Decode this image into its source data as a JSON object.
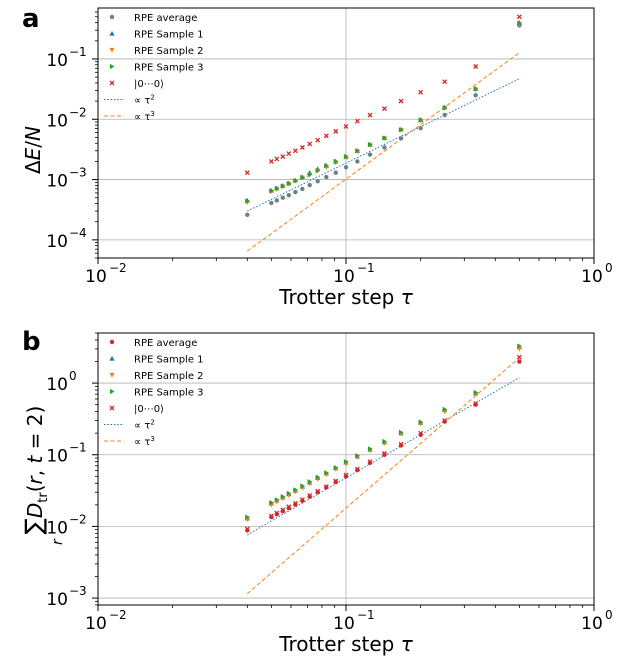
{
  "chart_data": [
    {
      "panel": "a",
      "type": "scatter",
      "xlabel": "Trotter step τ",
      "ylabel": "ΔE/N",
      "xscale": "log",
      "yscale": "log",
      "xlim": [
        0.01,
        1
      ],
      "ylim": [
        5e-05,
        0.7
      ],
      "xticks": [
        {
          "base": "10",
          "exp": "−2"
        },
        {
          "base": "10",
          "exp": "−1"
        },
        {
          "base": "10",
          "exp": "0"
        }
      ],
      "yticks": [
        {
          "value": 0.0001,
          "base": "10",
          "exp": "−4"
        },
        {
          "value": 0.001,
          "base": "10",
          "exp": "−3"
        },
        {
          "value": 0.01,
          "base": "10",
          "exp": "−2"
        },
        {
          "value": 0.1,
          "base": "10",
          "exp": "−1"
        }
      ],
      "grid": true,
      "legend_position": "top-left",
      "legend": [
        {
          "label": "RPE average",
          "marker": "dot",
          "color": "#6b7f8a"
        },
        {
          "label": "RPE Sample 1",
          "marker": "triangle-up",
          "color": "#1f77b4"
        },
        {
          "label": "RPE Sample 2",
          "marker": "triangle-down",
          "color": "#ff7f0e"
        },
        {
          "label": "RPE Sample 3",
          "marker": "triangle-right",
          "color": "#2ca02c"
        },
        {
          "label": "|0⋯0⟩",
          "marker": "x",
          "color": "#d62728"
        },
        {
          "label": "∝ τ",
          "exp": "2",
          "marker": "dotted",
          "color": "#1f77b4"
        },
        {
          "label": "∝ τ",
          "exp": "3",
          "marker": "dashed",
          "color": "#ff7f0e"
        }
      ],
      "x": [
        0.04,
        0.05,
        0.0526,
        0.0556,
        0.0588,
        0.0625,
        0.0667,
        0.0714,
        0.0769,
        0.0833,
        0.0909,
        0.1,
        0.1111,
        0.125,
        0.1429,
        0.1667,
        0.2,
        0.25,
        0.3333,
        0.5
      ],
      "series": [
        {
          "name": "RPE average",
          "values": [
            0.00026,
            0.00041,
            0.00045,
            0.0005,
            0.00055,
            0.00062,
            0.0007,
            0.00081,
            0.00094,
            0.0011,
            0.0013,
            0.0016,
            0.002,
            0.0026,
            0.0034,
            0.0048,
            0.0071,
            0.0118,
            0.025,
            0.36
          ]
        },
        {
          "name": "RPE Sample 1",
          "values": [
            0.00045,
            0.00066,
            0.00072,
            0.00079,
            0.00087,
            0.00097,
            0.0011,
            0.0013,
            0.0015,
            0.0017,
            0.002,
            0.0024,
            0.003,
            0.0038,
            0.0049,
            0.0068,
            0.0098,
            0.0158,
            0.032,
            0.4
          ]
        },
        {
          "name": "RPE Sample 2",
          "values": [
            0.00042,
            0.00063,
            0.00069,
            0.00076,
            0.00084,
            0.00094,
            0.00107,
            0.0012,
            0.0014,
            0.0016,
            0.0019,
            0.0023,
            0.0029,
            0.0037,
            0.0048,
            0.0066,
            0.0095,
            0.0152,
            0.031,
            0.38
          ]
        },
        {
          "name": "RPE Sample 3",
          "values": [
            0.00044,
            0.00065,
            0.00071,
            0.00078,
            0.00086,
            0.00096,
            0.00108,
            0.0012,
            0.0014,
            0.0017,
            0.002,
            0.0024,
            0.003,
            0.0038,
            0.0049,
            0.0067,
            0.0097,
            0.0155,
            0.032,
            0.39
          ]
        },
        {
          "name": "|0⋯0⟩",
          "values": [
            0.0013,
            0.002,
            0.0022,
            0.0024,
            0.0027,
            0.003,
            0.0034,
            0.0039,
            0.0045,
            0.0053,
            0.0063,
            0.0076,
            0.0093,
            0.0117,
            0.015,
            0.02,
            0.028,
            0.042,
            0.075,
            0.5
          ]
        }
      ],
      "reference_lines": [
        {
          "name": "∝ τ²",
          "x": [
            0.04,
            0.5
          ],
          "values": [
            0.0003,
            0.047
          ]
        },
        {
          "name": "∝ τ³",
          "x": [
            0.04,
            0.5
          ],
          "values": [
            6.5e-05,
            0.127
          ]
        }
      ]
    },
    {
      "panel": "b",
      "type": "scatter",
      "xlabel": "Trotter step τ",
      "ylabel": "∑ D_tr(r, t = 2)",
      "ylabel_sub": "r",
      "xscale": "log",
      "yscale": "log",
      "xlim": [
        0.01,
        1
      ],
      "ylim": [
        0.0008,
        5
      ],
      "xticks": [
        {
          "base": "10",
          "exp": "−2"
        },
        {
          "base": "10",
          "exp": "−1"
        },
        {
          "base": "10",
          "exp": "0"
        }
      ],
      "yticks": [
        {
          "value": 0.001,
          "base": "10",
          "exp": "−3"
        },
        {
          "value": 0.01,
          "base": "10",
          "exp": "−2"
        },
        {
          "value": 0.1,
          "base": "10",
          "exp": "−1"
        },
        {
          "value": 1,
          "base": "10",
          "exp": "0"
        }
      ],
      "grid": true,
      "legend_position": "top-left",
      "legend": [
        {
          "label": "RPE average",
          "marker": "dot",
          "color": "#d62728"
        },
        {
          "label": "RPE Sample 1",
          "marker": "triangle-up",
          "color": "#1f77b4"
        },
        {
          "label": "RPE Sample 2",
          "marker": "triangle-down",
          "color": "#ff7f0e"
        },
        {
          "label": "RPE Sample 3",
          "marker": "triangle-right",
          "color": "#2ca02c"
        },
        {
          "label": "|0⋯0⟩",
          "marker": "x",
          "color": "#d62728"
        },
        {
          "label": "∝ τ",
          "exp": "2",
          "marker": "dotted",
          "color": "#1f77b4"
        },
        {
          "label": "∝ τ",
          "exp": "3",
          "marker": "dashed",
          "color": "#ff7f0e"
        }
      ],
      "x": [
        0.04,
        0.05,
        0.0526,
        0.0556,
        0.0588,
        0.0625,
        0.0667,
        0.0714,
        0.0769,
        0.0833,
        0.0909,
        0.1,
        0.1111,
        0.125,
        0.1429,
        0.1667,
        0.2,
        0.25,
        0.3333,
        0.5
      ],
      "series": [
        {
          "name": "RPE average",
          "values": [
            0.0088,
            0.0135,
            0.0148,
            0.0163,
            0.018,
            0.0202,
            0.0228,
            0.026,
            0.03,
            0.035,
            0.0415,
            0.05,
            0.061,
            0.077,
            0.1,
            0.135,
            0.19,
            0.29,
            0.5,
            2.0
          ]
        },
        {
          "name": "RPE Sample 1",
          "values": [
            0.013,
            0.021,
            0.023,
            0.0255,
            0.0283,
            0.0317,
            0.036,
            0.041,
            0.0475,
            0.055,
            0.065,
            0.078,
            0.095,
            0.118,
            0.15,
            0.2,
            0.28,
            0.42,
            0.72,
            3.2
          ]
        },
        {
          "name": "RPE Sample 2",
          "values": [
            0.0125,
            0.02,
            0.022,
            0.0245,
            0.0272,
            0.0305,
            0.0345,
            0.0395,
            0.0455,
            0.053,
            0.063,
            0.075,
            0.092,
            0.114,
            0.145,
            0.195,
            0.27,
            0.4,
            0.7,
            3.0
          ]
        },
        {
          "name": "RPE Sample 3",
          "values": [
            0.0135,
            0.0215,
            0.0236,
            0.026,
            0.0289,
            0.0323,
            0.0366,
            0.042,
            0.0485,
            0.056,
            0.066,
            0.08,
            0.097,
            0.121,
            0.153,
            0.205,
            0.285,
            0.43,
            0.74,
            3.3
          ]
        },
        {
          "name": "|0⋯0⟩",
          "values": [
            0.0092,
            0.014,
            0.0154,
            0.017,
            0.0188,
            0.021,
            0.0237,
            0.027,
            0.031,
            0.036,
            0.043,
            0.052,
            0.063,
            0.08,
            0.104,
            0.14,
            0.2,
            0.3,
            0.52,
            2.3
          ]
        }
      ],
      "reference_lines": [
        {
          "name": "∝ τ²",
          "x": [
            0.04,
            0.5
          ],
          "values": [
            0.0076,
            1.19
          ]
        },
        {
          "name": "∝ τ³",
          "x": [
            0.04,
            0.5
          ],
          "values": [
            0.00115,
            2.25
          ]
        }
      ]
    }
  ]
}
